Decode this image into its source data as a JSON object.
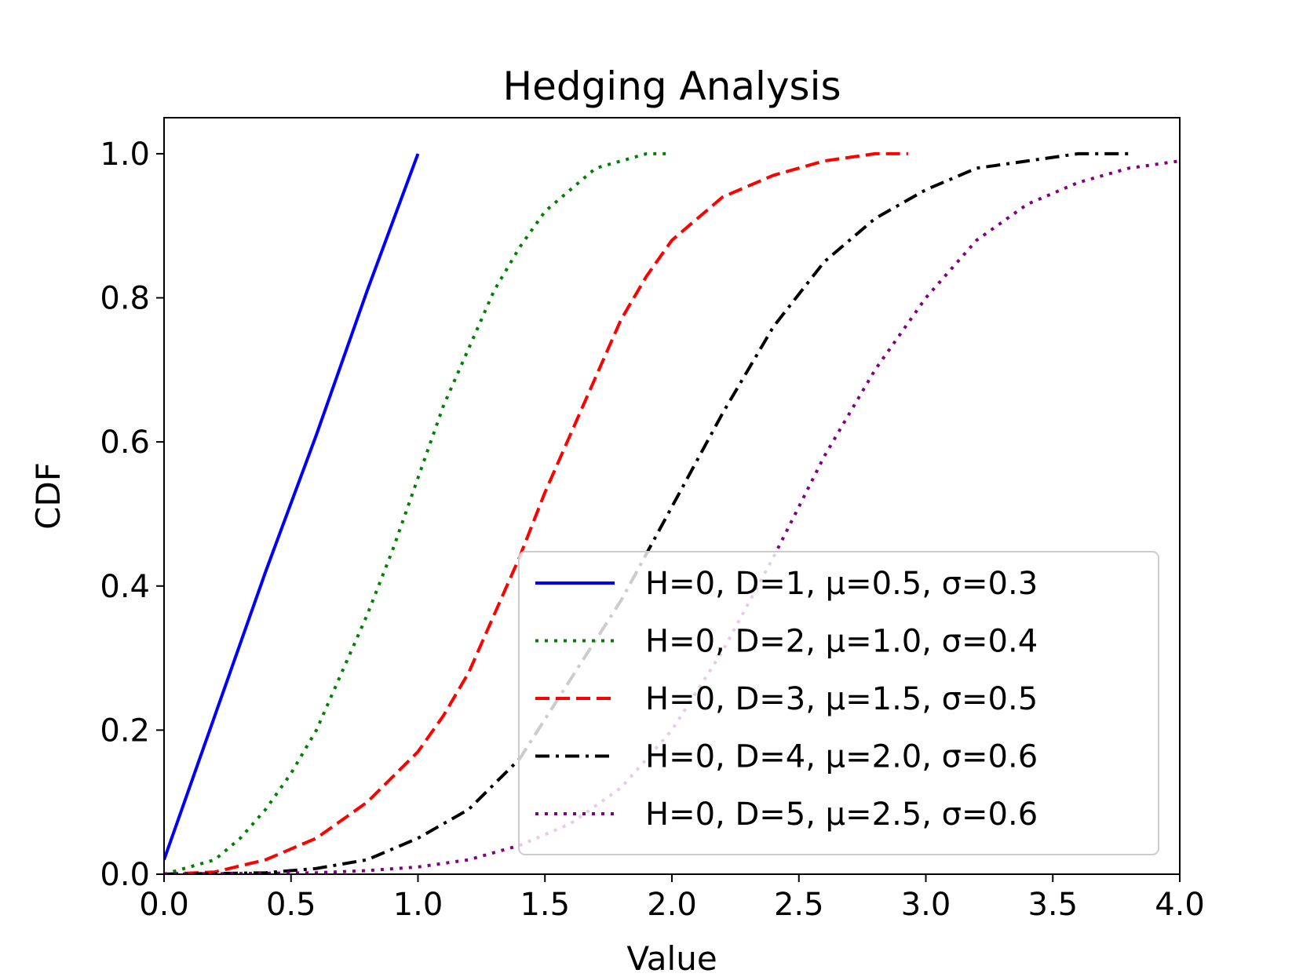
{
  "chart_data": {
    "type": "line",
    "title": "Hedging Analysis",
    "xlabel": "Value",
    "ylabel": "CDF",
    "xlim": [
      0.0,
      4.0
    ],
    "ylim": [
      0.0,
      1.05
    ],
    "xticks": [
      "0.0",
      "0.5",
      "1.0",
      "1.5",
      "2.0",
      "2.5",
      "3.0",
      "3.5",
      "4.0"
    ],
    "yticks": [
      "0.0",
      "0.2",
      "0.4",
      "0.6",
      "0.8",
      "1.0"
    ],
    "grid": false,
    "legend_position": "lower-right",
    "series": [
      {
        "name": "H=0, D=1, μ=0.5, σ=0.3",
        "color": "#0000ff",
        "style": "solid",
        "x": [
          0.0,
          0.2,
          0.4,
          0.6,
          0.8,
          1.0
        ],
        "y": [
          0.02,
          0.22,
          0.42,
          0.61,
          0.81,
          1.0
        ]
      },
      {
        "name": "H=0, D=2, μ=1.0, σ=0.4",
        "color": "#008000",
        "style": "dotted",
        "x": [
          0.0,
          0.1,
          0.2,
          0.3,
          0.4,
          0.5,
          0.6,
          0.7,
          0.8,
          0.9,
          1.0,
          1.1,
          1.2,
          1.3,
          1.4,
          1.5,
          1.6,
          1.7,
          1.8,
          1.9,
          1.98
        ],
        "y": [
          0.0,
          0.01,
          0.02,
          0.05,
          0.09,
          0.14,
          0.2,
          0.28,
          0.36,
          0.45,
          0.55,
          0.65,
          0.73,
          0.81,
          0.87,
          0.92,
          0.95,
          0.98,
          0.99,
          1.0,
          1.0
        ]
      },
      {
        "name": "H=0, D=3, μ=1.5, σ=0.5",
        "color": "#ff0000",
        "style": "dashed",
        "x": [
          0.0,
          0.2,
          0.4,
          0.6,
          0.8,
          1.0,
          1.1,
          1.2,
          1.3,
          1.4,
          1.5,
          1.6,
          1.7,
          1.8,
          1.9,
          2.0,
          2.2,
          2.4,
          2.6,
          2.8,
          2.93
        ],
        "y": [
          0.0,
          0.003,
          0.02,
          0.05,
          0.1,
          0.17,
          0.22,
          0.28,
          0.36,
          0.44,
          0.53,
          0.61,
          0.69,
          0.77,
          0.83,
          0.88,
          0.94,
          0.97,
          0.99,
          1.0,
          1.0
        ]
      },
      {
        "name": "H=0, D=4, μ=2.0, σ=0.6",
        "color": "#000000",
        "style": "dashdot",
        "x": [
          0.0,
          0.4,
          0.6,
          0.8,
          1.0,
          1.2,
          1.4,
          1.6,
          1.8,
          2.0,
          2.2,
          2.4,
          2.6,
          2.8,
          3.0,
          3.2,
          3.4,
          3.6,
          3.8
        ],
        "y": [
          0.0,
          0.002,
          0.008,
          0.02,
          0.05,
          0.09,
          0.16,
          0.27,
          0.38,
          0.51,
          0.64,
          0.76,
          0.85,
          0.91,
          0.95,
          0.98,
          0.99,
          1.0,
          1.0
        ]
      },
      {
        "name": "H=0, D=5, μ=2.5, σ=0.6",
        "color": "#800080",
        "style": "dotted",
        "x": [
          0.0,
          0.6,
          0.8,
          1.0,
          1.2,
          1.4,
          1.6,
          1.8,
          2.0,
          2.2,
          2.4,
          2.6,
          2.8,
          3.0,
          3.2,
          3.4,
          3.6,
          3.8,
          4.0
        ],
        "y": [
          0.0,
          0.002,
          0.005,
          0.01,
          0.02,
          0.04,
          0.07,
          0.12,
          0.2,
          0.31,
          0.44,
          0.58,
          0.7,
          0.8,
          0.88,
          0.93,
          0.96,
          0.98,
          0.99
        ]
      }
    ]
  }
}
